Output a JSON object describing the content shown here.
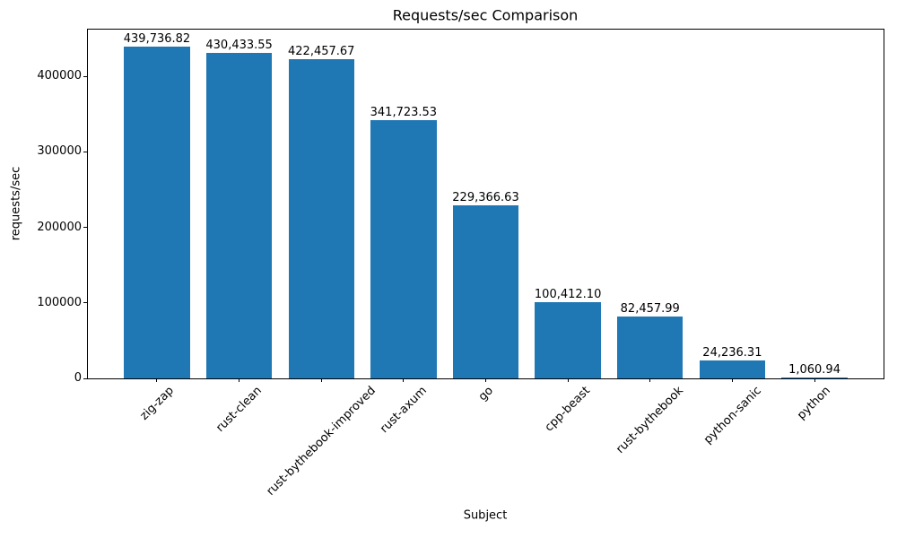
{
  "chart_data": {
    "type": "bar",
    "title": "Requests/sec Comparison",
    "xlabel": "Subject",
    "ylabel": "requests/sec",
    "categories": [
      "zig-zap",
      "rust-clean",
      "rust-bythebook-improved",
      "rust-axum",
      "go",
      "cpp-beast",
      "rust-bythebook",
      "python-sanic",
      "python"
    ],
    "values": [
      439736.82,
      430433.55,
      422457.67,
      341723.53,
      229366.63,
      100412.1,
      82457.99,
      24236.31,
      1060.94
    ],
    "value_labels": [
      "439,736.82",
      "430,433.55",
      "422,457.67",
      "341,723.53",
      "229,366.63",
      "100,412.10",
      "82,457.99",
      "24,236.31",
      "1,060.94"
    ],
    "yticks": [
      0,
      100000,
      200000,
      300000,
      400000
    ],
    "ytick_labels": [
      "0",
      "100000",
      "200000",
      "300000",
      "400000"
    ],
    "ylim": [
      0,
      461723.66
    ],
    "xlim": [
      -0.84,
      8.84
    ],
    "bar_width_ratio": 0.8,
    "x_tick_rotation": 45,
    "bar_color": "#1f77b4",
    "axis_color": "#000000",
    "text_color": "#000000",
    "background_color": "#ffffff",
    "grid": false,
    "legend_position": "none"
  }
}
